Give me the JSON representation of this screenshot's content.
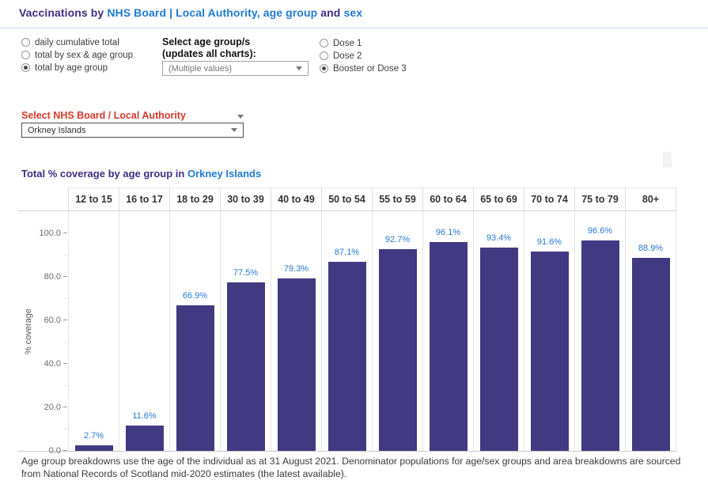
{
  "colors": {
    "accent_purple": "#3f2d85",
    "link_blue": "#1f7ad6",
    "alert_red": "#d83a2b",
    "bar_fill": "#413a82",
    "bar_label_blue": "#2878d2"
  },
  "header": {
    "title_segments": [
      {
        "text": "Vaccinations by ",
        "color": "purple"
      },
      {
        "text": "NHS Board | Local Authority, age group",
        "color": "blue"
      },
      {
        "text": " and ",
        "color": "purple"
      },
      {
        "text": "sex",
        "color": "blue"
      }
    ]
  },
  "controls": {
    "view_mode": {
      "options": [
        "daily cumulative total",
        "total by sex & age group",
        "total by age group"
      ],
      "selected_index": 2
    },
    "age_group": {
      "label_line1": "Select age group/s",
      "label_line2": "(updates all charts):",
      "dropdown_value": "(Multiple values)"
    },
    "dose": {
      "options": [
        "Dose 1",
        "Dose 2",
        "Booster or Dose 3"
      ],
      "selected_index": 2
    },
    "board": {
      "label": "Select NHS Board / Local Authority",
      "dropdown_value": "Orkney Islands"
    }
  },
  "chart_title": {
    "prefix": "Total % coverage by age group in ",
    "highlight": "Orkney Islands"
  },
  "chart_data": {
    "type": "bar",
    "title": "Total % coverage by age group in Orkney Islands",
    "categories": [
      "12 to 15",
      "16 to 17",
      "18 to 29",
      "30 to 39",
      "40 to 49",
      "50 to 54",
      "55 to 59",
      "60 to 64",
      "65 to 69",
      "70 to 74",
      "75 to 79",
      "80+"
    ],
    "values": [
      2.7,
      11.6,
      66.9,
      77.5,
      79.3,
      87.1,
      92.7,
      96.1,
      93.4,
      91.6,
      96.6,
      88.9
    ],
    "data_labels": [
      "2.7%",
      "11.6%",
      "66.9%",
      "77.5%",
      "79.3%",
      "87.1%",
      "92.7%",
      "96.1%",
      "93.4%",
      "91.6%",
      "96.6%",
      "88.9%"
    ],
    "xlabel": "",
    "ylabel": "% coverage",
    "ylim": [
      0,
      110.5
    ],
    "ytick_values": [
      0,
      20,
      40,
      60,
      80,
      100
    ],
    "ytick_labels": [
      "0.0",
      "20.0",
      "40.0",
      "60.0",
      "80.0",
      "100.0"
    ],
    "ytick_minor_values": [
      10,
      30,
      50,
      70,
      90
    ],
    "grid": false,
    "legend": "none"
  },
  "footer": {
    "note": "Age group breakdowns use the age of the individual as at 31 August 2021. Denominator populations for age/sex groups and area breakdowns are sourced from National Records of Scotland mid-2020 estimates (the latest available)."
  }
}
